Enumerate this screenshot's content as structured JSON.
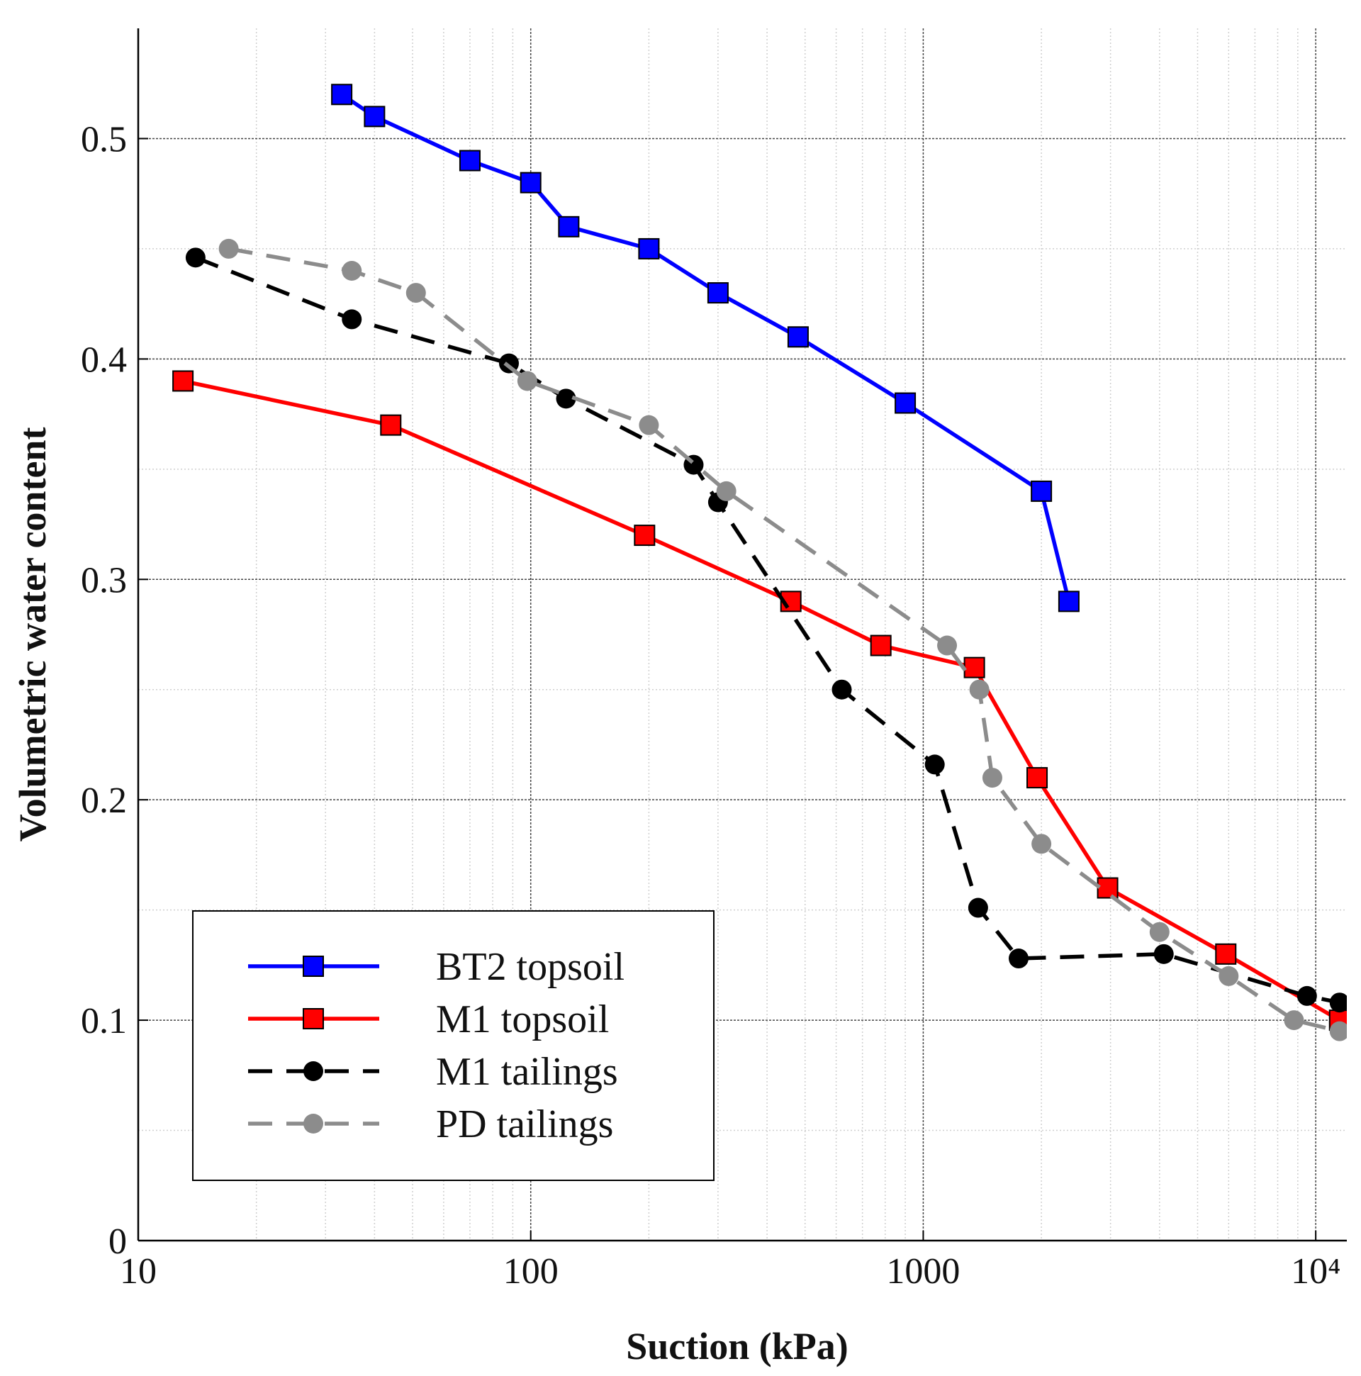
{
  "chart_data": {
    "type": "line",
    "title": "",
    "xlabel": "Suction (kPa)",
    "ylabel": "Volumetric water content",
    "xscale": "log",
    "xlim": [
      10,
      12000
    ],
    "ylim": [
      0,
      0.55
    ],
    "grid": true,
    "legend_position": "bottom-left",
    "xticks": [
      {
        "value": 10,
        "label": "10"
      },
      {
        "value": 100,
        "label": "100"
      },
      {
        "value": 1000,
        "label": "1000"
      },
      {
        "value": 10000,
        "label": "10⁴"
      }
    ],
    "yticks": [
      {
        "value": 0,
        "label": "0"
      },
      {
        "value": 0.1,
        "label": "0.1"
      },
      {
        "value": 0.2,
        "label": "0.2"
      },
      {
        "value": 0.3,
        "label": "0.3"
      },
      {
        "value": 0.4,
        "label": "0.4"
      },
      {
        "value": 0.5,
        "label": "0.5"
      }
    ],
    "series": [
      {
        "name": "BT2 topsoil",
        "color": "#0000ff",
        "line": "solid",
        "marker": "square",
        "x": [
          33,
          40,
          70,
          100,
          125,
          200,
          300,
          480,
          900,
          2000,
          2350
        ],
        "y": [
          0.52,
          0.51,
          0.49,
          0.48,
          0.46,
          0.45,
          0.43,
          0.41,
          0.38,
          0.34,
          0.29
        ]
      },
      {
        "name": "M1 topsoil",
        "color": "#ff0000",
        "line": "solid",
        "marker": "square",
        "x": [
          13,
          44,
          195,
          460,
          780,
          1350,
          1950,
          2950,
          5900,
          11500
        ],
        "y": [
          0.39,
          0.37,
          0.32,
          0.29,
          0.27,
          0.26,
          0.21,
          0.16,
          0.13,
          0.1
        ]
      },
      {
        "name": "M1 tailings",
        "color": "#000000",
        "line": "dashed",
        "marker": "circle",
        "x": [
          14,
          35,
          88,
          123,
          260,
          300,
          620,
          1070,
          1380,
          1750,
          4100,
          9500,
          11500
        ],
        "y": [
          0.446,
          0.418,
          0.398,
          0.382,
          0.352,
          0.335,
          0.25,
          0.216,
          0.151,
          0.128,
          0.13,
          0.111,
          0.108
        ]
      },
      {
        "name": "PD tailings",
        "color": "#8c8c8c",
        "line": "dashed",
        "marker": "circle",
        "x": [
          17,
          35,
          51,
          98,
          200,
          315,
          1150,
          1390,
          1500,
          2000,
          4000,
          6000,
          8800,
          11500
        ],
        "y": [
          0.45,
          0.44,
          0.43,
          0.39,
          0.37,
          0.34,
          0.27,
          0.25,
          0.21,
          0.18,
          0.14,
          0.12,
          0.1,
          0.095
        ]
      }
    ]
  }
}
